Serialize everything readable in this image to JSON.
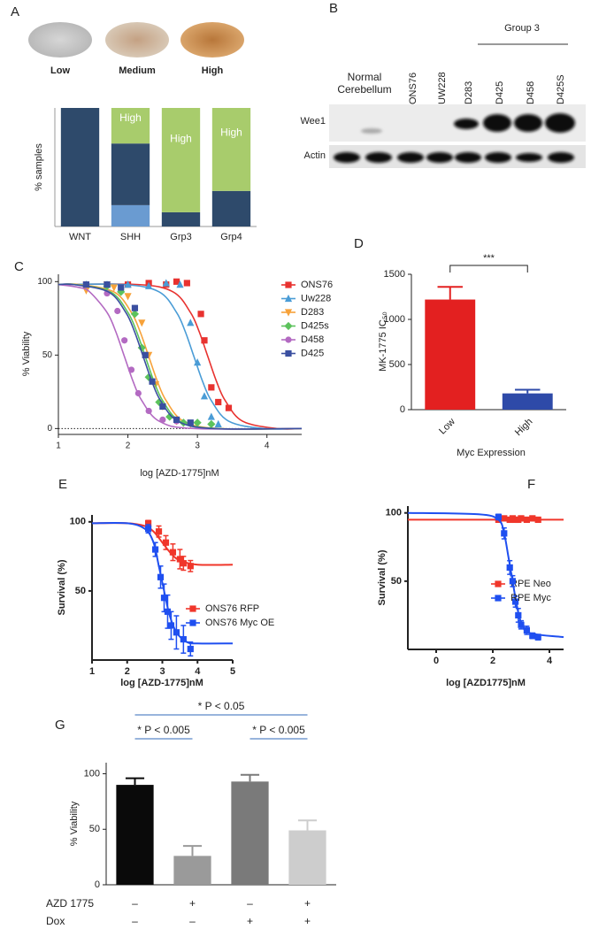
{
  "panel_labels": [
    "A",
    "B",
    "C",
    "D",
    "E",
    "F",
    "G"
  ],
  "staining": {
    "levels": [
      "Low",
      "Medium",
      "High"
    ]
  },
  "blot": {
    "group": "Group 3",
    "lanes": [
      "Normal Cerebellum",
      "ONS76",
      "UW228",
      "D283",
      "D425",
      "D458",
      "D425S"
    ],
    "rows": [
      "Wee1",
      "Actin"
    ]
  },
  "chart_data": [
    {
      "type": "stacked_bar",
      "ylabel": "% samples",
      "categories": [
        "WNT",
        "SHH",
        "Grp3",
        "Grp4"
      ],
      "ylim": [
        0,
        100
      ],
      "series": [
        {
          "color": "#6a9bd1",
          "values": [
            0,
            18,
            0,
            0
          ]
        },
        {
          "color": "#2e4a6b",
          "values": [
            100,
            52,
            12,
            30
          ]
        },
        {
          "color": "#a8cc6c",
          "values": [
            0,
            30,
            88,
            70
          ]
        }
      ],
      "annotations": [
        "High",
        "High",
        "High"
      ]
    },
    {
      "type": "scatter",
      "xlabel": "log [AZD-1775]nM",
      "ylabel": "% Viability",
      "xlim": [
        1,
        4.5
      ],
      "ylim": [
        -4,
        105
      ],
      "xticks": [
        1,
        2,
        3,
        4
      ],
      "yticks": [
        0,
        50,
        100
      ],
      "zero_line": "dotted",
      "series": [
        {
          "name": "ONS76",
          "color": "#e8322f",
          "marker": "square",
          "x": [
            1.4,
            1.7,
            2.0,
            2.3,
            2.55,
            2.7,
            2.85,
            3.05,
            3.1,
            3.2,
            3.3,
            3.45
          ],
          "values": [
            98,
            98,
            98,
            99,
            98,
            100,
            99,
            78,
            60,
            28,
            18,
            14
          ],
          "fit": {
            "x": [
              1,
              2.15,
              2.65,
              2.9,
              3.025,
              3.15,
              3.275,
              3.4,
              3.65,
              4.15,
              4.5
            ],
            "y": [
              98,
              98,
              93,
              79,
              66,
              49,
              32,
              19,
              5,
              0,
              0
            ]
          }
        },
        {
          "name": "Uw228",
          "color": "#4a9cd6",
          "marker": "triangle",
          "x": [
            1.4,
            1.7,
            2.0,
            2.3,
            2.55,
            2.75,
            2.9,
            3.0,
            3.1,
            3.2,
            3.3
          ],
          "values": [
            98,
            98,
            98,
            97,
            99,
            98,
            72,
            45,
            22,
            8,
            3
          ],
          "fit": {
            "x": [
              1,
              1.95,
              2.45,
              2.7,
              2.825,
              2.95,
              3.075,
              3.2,
              3.45,
              3.95,
              4.5
            ],
            "y": [
              98,
              98,
              93,
              79,
              66,
              49,
              32,
              19,
              5,
              0,
              0
            ]
          }
        },
        {
          "name": "D283",
          "color": "#f7a23a",
          "marker": "triangle-down",
          "x": [
            1.4,
            1.7,
            1.8,
            2.0,
            2.2,
            2.3,
            2.4,
            2.5,
            2.7,
            2.9
          ],
          "values": [
            94,
            98,
            96,
            90,
            72,
            50,
            30,
            15,
            5,
            3
          ],
          "fit": {
            "x": [
              1,
              1.3,
              1.8,
              2.05,
              2.175,
              2.3,
              2.425,
              2.55,
              2.8,
              3.3,
              4.5
            ],
            "y": [
              98,
              98,
              93,
              79,
              66,
              49,
              32,
              19,
              5,
              0,
              0
            ]
          }
        },
        {
          "name": "D425s",
          "color": "#5cc25c",
          "marker": "diamond",
          "x": [
            1.7,
            1.9,
            2.1,
            2.2,
            2.3,
            2.45,
            2.6,
            2.8,
            3.0,
            3.2
          ],
          "values": [
            97,
            93,
            78,
            55,
            35,
            18,
            8,
            4,
            4,
            3
          ],
          "fit": {
            "x": [
              1,
              1.25,
              1.75,
              2.0,
              2.125,
              2.25,
              2.375,
              2.5,
              2.75,
              3.25,
              4.5
            ],
            "y": [
              98,
              98,
              93,
              79,
              66,
              49,
              32,
              19,
              5,
              0,
              0
            ]
          }
        },
        {
          "name": "D458",
          "color": "#b36ac2",
          "marker": "circle",
          "x": [
            1.4,
            1.7,
            1.85,
            1.95,
            2.05,
            2.15,
            2.3,
            2.5,
            2.7
          ],
          "values": [
            98,
            92,
            80,
            60,
            40,
            24,
            12,
            6,
            5
          ],
          "fit": {
            "x": [
              1,
              1.3,
              1.45,
              1.7,
              1.825,
              1.95,
              2.075,
              2.2,
              2.45,
              2.95,
              4.5
            ],
            "y": [
              98,
              96,
              93,
              79,
              66,
              49,
              32,
              19,
              5,
              0,
              0
            ]
          }
        },
        {
          "name": "D425",
          "color": "#3a4fa0",
          "marker": "square",
          "x": [
            1.4,
            1.7,
            1.9,
            2.1,
            2.25,
            2.35,
            2.5,
            2.7,
            2.9
          ],
          "values": [
            98,
            98,
            96,
            82,
            50,
            32,
            15,
            6,
            4
          ],
          "fit": {
            "x": [
              1,
              1.22,
              1.72,
              1.97,
              2.095,
              2.22,
              2.345,
              2.47,
              2.72,
              3.22,
              4.5
            ],
            "y": [
              98,
              98,
              93,
              79,
              66,
              49,
              32,
              19,
              5,
              0,
              0
            ]
          }
        }
      ]
    },
    {
      "type": "bar",
      "ylabel": "MK-1775 IC₅₀",
      "xlabel": "Myc Expression",
      "categories": [
        "Low",
        "High"
      ],
      "values": [
        1220,
        180
      ],
      "errors": [
        140,
        40
      ],
      "colors": [
        "#e32020",
        "#2e4aa8"
      ],
      "ylim": [
        0,
        1500
      ],
      "yticks": [
        0,
        500,
        1000,
        1500
      ],
      "annotations": [
        "***"
      ]
    },
    {
      "type": "scatter",
      "xlabel": "log [AZD-1775]nM",
      "ylabel": "Survival (%)",
      "xlim": [
        1,
        5
      ],
      "ylim": [
        0,
        105
      ],
      "xticks": [
        1,
        2,
        3,
        4,
        5
      ],
      "yticks": [
        50,
        100
      ],
      "series": [
        {
          "name": "ONS76 RFP",
          "color": "#f0362a",
          "marker": "square",
          "x": [
            2.6,
            2.9,
            3.1,
            3.3,
            3.5,
            3.6,
            3.8
          ],
          "values": [
            99,
            93,
            85,
            78,
            73,
            70,
            68
          ],
          "errors": [
            2,
            4,
            5,
            6,
            7,
            5,
            4
          ],
          "fit": {
            "x": [
              1,
              2,
              2.5,
              2.75,
              3,
              3.25,
              3.5,
              4,
              5
            ],
            "y": [
              99,
              99,
              97,
              93,
              85,
              77,
              72,
              69,
              69
            ]
          }
        },
        {
          "name": "ONS76 Myc OE",
          "color": "#1f4ff0",
          "marker": "square",
          "x": [
            2.6,
            2.8,
            2.95,
            3.05,
            3.15,
            3.25,
            3.4,
            3.6,
            3.8
          ],
          "values": [
            95,
            80,
            60,
            45,
            35,
            25,
            20,
            15,
            8
          ],
          "errors": [
            3,
            5,
            8,
            10,
            12,
            10,
            12,
            10,
            5
          ],
          "fit": {
            "x": [
              1,
              2,
              2.5,
              2.75,
              2.9,
              3.05,
              3.2,
              3.4,
              3.7,
              4,
              5
            ],
            "y": [
              99,
              99,
              95,
              85,
              68,
              50,
              33,
              20,
              13,
              12,
              12
            ]
          }
        }
      ]
    },
    {
      "type": "scatter",
      "xlabel": "log [AZD1775]nM",
      "ylabel": "Survival (%)",
      "xlim": [
        -1,
        4.5
      ],
      "ylim": [
        0,
        105
      ],
      "xticks": [
        0,
        2,
        4
      ],
      "yticks": [
        50,
        100
      ],
      "series": [
        {
          "name": "RPE Neo",
          "color": "#f0362a",
          "marker": "square",
          "x": [
            2.2,
            2.4,
            2.6,
            2.7,
            2.8,
            2.9,
            3.0,
            3.2,
            3.4,
            3.6
          ],
          "values": [
            95,
            96,
            95,
            96,
            95,
            95,
            96,
            95,
            96,
            95
          ],
          "errors": [
            1,
            1,
            1,
            1,
            1,
            1,
            1,
            1,
            1,
            1
          ],
          "fit": {
            "x": [
              -1,
              4.5
            ],
            "y": [
              95,
              95
            ]
          }
        },
        {
          "name": "RPE Myc",
          "color": "#1f4ff0",
          "marker": "square",
          "x": [
            2.2,
            2.4,
            2.6,
            2.7,
            2.8,
            2.9,
            3.0,
            3.2,
            3.4,
            3.6
          ],
          "values": [
            97,
            85,
            60,
            50,
            35,
            25,
            18,
            14,
            10,
            9
          ],
          "errors": [
            2,
            4,
            5,
            4,
            4,
            5,
            3,
            3,
            2,
            2
          ],
          "fit": {
            "x": [
              -1,
              1.5,
              2.2,
              2.4,
              2.55,
              2.7,
              2.85,
              3.0,
              3.3,
              4.5
            ],
            "y": [
              100,
              99,
              95,
              85,
              68,
              50,
              32,
              20,
              12,
              9
            ]
          }
        }
      ]
    },
    {
      "type": "bar",
      "ylabel": "% Viability",
      "values": [
        90,
        26,
        93,
        49
      ],
      "errors": [
        6,
        9,
        6,
        9
      ],
      "colors": [
        "#0a0a0a",
        "#9a9a9a",
        "#7a7a7a",
        "#cdcdcd"
      ],
      "ylim": [
        0,
        110
      ],
      "yticks": [
        0,
        50,
        100
      ],
      "annotations": [
        "*  P < 0.005",
        "*  P < 0.05",
        "*  P < 0.005"
      ],
      "conditions": [
        {
          "label": "AZD 1775",
          "signs": [
            "–",
            "+",
            "–",
            "+"
          ]
        },
        {
          "label": "Dox",
          "signs": [
            "–",
            "–",
            "+",
            "+"
          ]
        }
      ]
    }
  ]
}
